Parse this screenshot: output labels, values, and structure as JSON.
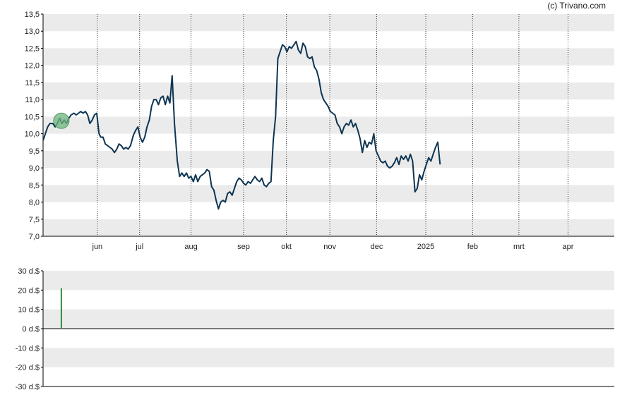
{
  "credit": "(c) Trivano.com",
  "chart_data": [
    {
      "type": "line",
      "ylim": [
        7.0,
        13.5
      ],
      "grid": true,
      "yticks": [
        "7,0",
        "7,5",
        "8,0",
        "8,5",
        "9,0",
        "9,5",
        "10,0",
        "10,5",
        "11,0",
        "11,5",
        "12,0",
        "12,5",
        "13,0",
        "13,5"
      ],
      "yvals": [
        7.0,
        7.5,
        8.0,
        8.5,
        9.0,
        9.5,
        10.0,
        10.5,
        11.0,
        11.5,
        12.0,
        12.5,
        13.0,
        13.5
      ],
      "xticks": [
        {
          "label": "jun",
          "x": 0.095
        },
        {
          "label": "jul",
          "x": 0.169
        },
        {
          "label": "aug",
          "x": 0.259
        },
        {
          "label": "sep",
          "x": 0.351
        },
        {
          "label": "okt",
          "x": 0.426
        },
        {
          "label": "nov",
          "x": 0.502
        },
        {
          "label": "dec",
          "x": 0.584
        },
        {
          "label": "2025",
          "x": 0.67
        },
        {
          "label": "feb",
          "x": 0.752
        },
        {
          "label": "mrt",
          "x": 0.833
        },
        {
          "label": "apr",
          "x": 0.919
        }
      ],
      "series": [
        {
          "color": "#0d3552",
          "points": [
            [
              0.0,
              9.8
            ],
            [
              0.004,
              10.0
            ],
            [
              0.008,
              10.2
            ],
            [
              0.012,
              10.3
            ],
            [
              0.017,
              10.3
            ],
            [
              0.021,
              10.2
            ],
            [
              0.025,
              10.3
            ],
            [
              0.029,
              10.45
            ],
            [
              0.033,
              10.3
            ],
            [
              0.037,
              10.4
            ],
            [
              0.041,
              10.3
            ],
            [
              0.045,
              10.45
            ],
            [
              0.049,
              10.55
            ],
            [
              0.054,
              10.6
            ],
            [
              0.058,
              10.55
            ],
            [
              0.062,
              10.6
            ],
            [
              0.066,
              10.65
            ],
            [
              0.07,
              10.6
            ],
            [
              0.074,
              10.65
            ],
            [
              0.078,
              10.55
            ],
            [
              0.082,
              10.3
            ],
            [
              0.086,
              10.4
            ],
            [
              0.09,
              10.55
            ],
            [
              0.094,
              10.6
            ],
            [
              0.098,
              10.0
            ],
            [
              0.101,
              9.9
            ],
            [
              0.105,
              9.9
            ],
            [
              0.109,
              9.7
            ],
            [
              0.113,
              9.65
            ],
            [
              0.117,
              9.6
            ],
            [
              0.121,
              9.55
            ],
            [
              0.125,
              9.45
            ],
            [
              0.129,
              9.55
            ],
            [
              0.133,
              9.7
            ],
            [
              0.137,
              9.65
            ],
            [
              0.141,
              9.55
            ],
            [
              0.145,
              9.6
            ],
            [
              0.149,
              9.55
            ],
            [
              0.153,
              9.65
            ],
            [
              0.158,
              9.95
            ],
            [
              0.162,
              10.1
            ],
            [
              0.166,
              10.2
            ],
            [
              0.17,
              9.9
            ],
            [
              0.174,
              9.75
            ],
            [
              0.178,
              9.9
            ],
            [
              0.182,
              10.2
            ],
            [
              0.186,
              10.4
            ],
            [
              0.19,
              10.8
            ],
            [
              0.194,
              11.0
            ],
            [
              0.198,
              11.0
            ],
            [
              0.202,
              10.85
            ],
            [
              0.206,
              11.05
            ],
            [
              0.21,
              11.1
            ],
            [
              0.214,
              10.85
            ],
            [
              0.218,
              11.1
            ],
            [
              0.222,
              10.9
            ],
            [
              0.226,
              11.7
            ],
            [
              0.23,
              10.3
            ],
            [
              0.235,
              9.2
            ],
            [
              0.239,
              8.75
            ],
            [
              0.243,
              8.85
            ],
            [
              0.247,
              8.75
            ],
            [
              0.251,
              8.85
            ],
            [
              0.255,
              8.7
            ],
            [
              0.259,
              8.75
            ],
            [
              0.263,
              8.6
            ],
            [
              0.267,
              8.8
            ],
            [
              0.271,
              8.6
            ],
            [
              0.275,
              8.75
            ],
            [
              0.279,
              8.8
            ],
            [
              0.283,
              8.85
            ],
            [
              0.287,
              8.95
            ],
            [
              0.291,
              8.9
            ],
            [
              0.295,
              8.45
            ],
            [
              0.299,
              8.35
            ],
            [
              0.303,
              8.05
            ],
            [
              0.307,
              7.8
            ],
            [
              0.311,
              8.0
            ],
            [
              0.315,
              8.05
            ],
            [
              0.319,
              8.0
            ],
            [
              0.323,
              8.25
            ],
            [
              0.327,
              8.3
            ],
            [
              0.331,
              8.2
            ],
            [
              0.335,
              8.4
            ],
            [
              0.339,
              8.6
            ],
            [
              0.343,
              8.7
            ],
            [
              0.347,
              8.65
            ],
            [
              0.351,
              8.55
            ],
            [
              0.355,
              8.5
            ],
            [
              0.359,
              8.6
            ],
            [
              0.363,
              8.55
            ],
            [
              0.367,
              8.65
            ],
            [
              0.371,
              8.75
            ],
            [
              0.375,
              8.65
            ],
            [
              0.379,
              8.6
            ],
            [
              0.383,
              8.7
            ],
            [
              0.387,
              8.5
            ],
            [
              0.391,
              8.45
            ],
            [
              0.395,
              8.55
            ],
            [
              0.399,
              8.6
            ],
            [
              0.403,
              9.8
            ],
            [
              0.407,
              10.5
            ],
            [
              0.411,
              12.2
            ],
            [
              0.415,
              12.4
            ],
            [
              0.419,
              12.6
            ],
            [
              0.423,
              12.55
            ],
            [
              0.427,
              12.4
            ],
            [
              0.431,
              12.55
            ],
            [
              0.435,
              12.5
            ],
            [
              0.439,
              12.6
            ],
            [
              0.443,
              12.7
            ],
            [
              0.447,
              12.45
            ],
            [
              0.451,
              12.35
            ],
            [
              0.455,
              12.65
            ],
            [
              0.459,
              12.55
            ],
            [
              0.463,
              12.25
            ],
            [
              0.467,
              12.2
            ],
            [
              0.471,
              12.25
            ],
            [
              0.475,
              11.95
            ],
            [
              0.479,
              11.85
            ],
            [
              0.483,
              11.6
            ],
            [
              0.487,
              11.2
            ],
            [
              0.491,
              11.0
            ],
            [
              0.495,
              10.9
            ],
            [
              0.499,
              10.8
            ],
            [
              0.503,
              10.65
            ],
            [
              0.507,
              10.6
            ],
            [
              0.511,
              10.55
            ],
            [
              0.515,
              10.3
            ],
            [
              0.519,
              10.2
            ],
            [
              0.523,
              10.0
            ],
            [
              0.527,
              10.2
            ],
            [
              0.531,
              10.3
            ],
            [
              0.535,
              10.25
            ],
            [
              0.539,
              10.4
            ],
            [
              0.543,
              10.2
            ],
            [
              0.547,
              10.3
            ],
            [
              0.551,
              10.1
            ],
            [
              0.555,
              9.85
            ],
            [
              0.559,
              9.45
            ],
            [
              0.563,
              9.8
            ],
            [
              0.567,
              9.6
            ],
            [
              0.571,
              9.75
            ],
            [
              0.575,
              9.7
            ],
            [
              0.579,
              10.0
            ],
            [
              0.583,
              9.5
            ],
            [
              0.587,
              9.35
            ],
            [
              0.591,
              9.2
            ],
            [
              0.595,
              9.15
            ],
            [
              0.599,
              9.2
            ],
            [
              0.603,
              9.05
            ],
            [
              0.607,
              9.0
            ],
            [
              0.611,
              9.05
            ],
            [
              0.615,
              9.15
            ],
            [
              0.619,
              9.3
            ],
            [
              0.623,
              9.1
            ],
            [
              0.627,
              9.35
            ],
            [
              0.631,
              9.25
            ],
            [
              0.635,
              9.35
            ],
            [
              0.639,
              9.2
            ],
            [
              0.643,
              9.4
            ],
            [
              0.647,
              9.2
            ],
            [
              0.651,
              8.3
            ],
            [
              0.655,
              8.4
            ],
            [
              0.659,
              8.8
            ],
            [
              0.663,
              8.65
            ],
            [
              0.667,
              8.9
            ],
            [
              0.671,
              9.1
            ],
            [
              0.675,
              9.3
            ],
            [
              0.679,
              9.2
            ],
            [
              0.683,
              9.4
            ],
            [
              0.687,
              9.6
            ],
            [
              0.691,
              9.75
            ],
            [
              0.695,
              9.1
            ]
          ]
        }
      ],
      "marker": {
        "x": 0.032,
        "y": 10.38,
        "color": "#6fb57f"
      }
    },
    {
      "type": "bar",
      "ylim": [
        -30,
        30
      ],
      "grid": true,
      "yticks": [
        "30 d.$",
        "20 d.$",
        "10 d.$",
        "0 d.$",
        "-10 d.$",
        "-20 d.$",
        "-30 d.$"
      ],
      "yvals": [
        30,
        20,
        10,
        0,
        -10,
        -20,
        -30
      ],
      "bars": [
        {
          "x": 0.032,
          "value": 21,
          "color": "#2e8b3e"
        }
      ]
    }
  ]
}
